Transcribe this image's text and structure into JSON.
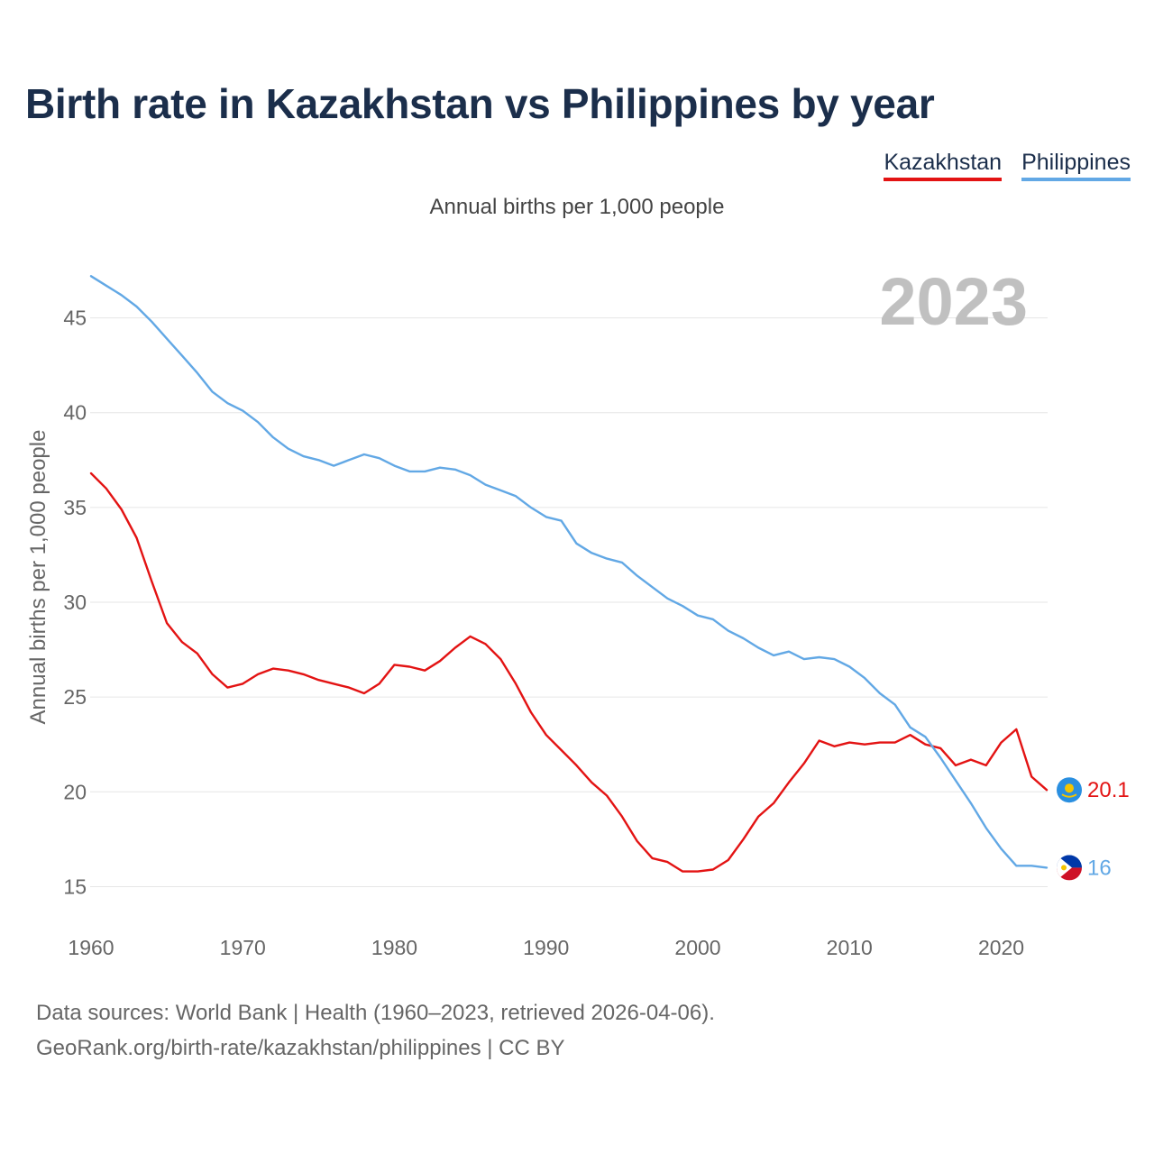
{
  "title": "Birth rate in Kazakhstan vs Philippines by year",
  "legend": [
    {
      "label": "Kazakhstan",
      "color": "#e31313"
    },
    {
      "label": "Philippines",
      "color": "#62a8e5"
    }
  ],
  "subtitle": "Annual births per 1,000 people",
  "year_label": "2023",
  "footer": {
    "line1": "Data sources: World Bank | Health (1960–2023, retrieved 2026-04-06).",
    "line2": "GeoRank.org/birth-rate/kazakhstan/philippines | CC BY"
  },
  "chart_data": {
    "type": "line",
    "title": "Birth rate in Kazakhstan vs Philippines by year",
    "ylabel": "Annual births per 1,000 people",
    "xlabel": "",
    "xlim": [
      1960,
      2023
    ],
    "ylim": [
      13.5,
      47.5
    ],
    "xticks": [
      1960,
      1970,
      1980,
      1990,
      2000,
      2010,
      2020
    ],
    "yticks": [
      15,
      20,
      25,
      30,
      35,
      40,
      45
    ],
    "grid": true,
    "series": [
      {
        "name": "Kazakhstan",
        "color": "#e31313",
        "end_label": "20.1",
        "flag_icon": "kazakhstan-flag-icon",
        "x": [
          1960,
          1961,
          1962,
          1963,
          1964,
          1965,
          1966,
          1967,
          1968,
          1969,
          1970,
          1971,
          1972,
          1973,
          1974,
          1975,
          1976,
          1977,
          1978,
          1979,
          1980,
          1981,
          1982,
          1983,
          1984,
          1985,
          1986,
          1987,
          1988,
          1989,
          1990,
          1991,
          1992,
          1993,
          1994,
          1995,
          1996,
          1997,
          1998,
          1999,
          2000,
          2001,
          2002,
          2003,
          2004,
          2005,
          2006,
          2007,
          2008,
          2009,
          2010,
          2011,
          2012,
          2013,
          2014,
          2015,
          2016,
          2017,
          2018,
          2019,
          2020,
          2021,
          2022,
          2023
        ],
        "values": [
          36.8,
          36.0,
          34.9,
          33.4,
          31.1,
          28.9,
          27.9,
          27.3,
          26.2,
          25.5,
          25.7,
          26.2,
          26.5,
          26.4,
          26.2,
          25.9,
          25.7,
          25.5,
          25.2,
          25.7,
          26.7,
          26.6,
          26.4,
          26.9,
          27.6,
          28.2,
          27.8,
          27.0,
          25.7,
          24.2,
          23.0,
          22.2,
          21.4,
          20.5,
          19.8,
          18.7,
          17.4,
          16.5,
          16.3,
          15.8,
          15.8,
          15.9,
          16.4,
          17.5,
          18.7,
          19.4,
          20.5,
          21.5,
          22.7,
          22.4,
          22.6,
          22.5,
          22.6,
          22.6,
          23.0,
          22.5,
          22.3,
          21.4,
          21.7,
          21.4,
          22.6,
          23.3,
          20.8,
          20.1
        ]
      },
      {
        "name": "Philippines",
        "color": "#62a8e5",
        "end_label": "16",
        "flag_icon": "philippines-flag-icon",
        "x": [
          1960,
          1961,
          1962,
          1963,
          1964,
          1965,
          1966,
          1967,
          1968,
          1969,
          1970,
          1971,
          1972,
          1973,
          1974,
          1975,
          1976,
          1977,
          1978,
          1979,
          1980,
          1981,
          1982,
          1983,
          1984,
          1985,
          1986,
          1987,
          1988,
          1989,
          1990,
          1991,
          1992,
          1993,
          1994,
          1995,
          1996,
          1997,
          1998,
          1999,
          2000,
          2001,
          2002,
          2003,
          2004,
          2005,
          2006,
          2007,
          2008,
          2009,
          2010,
          2011,
          2012,
          2013,
          2014,
          2015,
          2016,
          2017,
          2018,
          2019,
          2020,
          2021,
          2022,
          2023
        ],
        "values": [
          47.2,
          46.7,
          46.2,
          45.6,
          44.8,
          43.9,
          43.0,
          42.1,
          41.1,
          40.5,
          40.1,
          39.5,
          38.7,
          38.1,
          37.7,
          37.5,
          37.2,
          37.5,
          37.8,
          37.6,
          37.2,
          36.9,
          36.9,
          37.1,
          37.0,
          36.7,
          36.2,
          35.9,
          35.6,
          35.0,
          34.5,
          34.3,
          33.1,
          32.6,
          32.3,
          32.1,
          31.4,
          30.8,
          30.2,
          29.8,
          29.3,
          29.1,
          28.5,
          28.1,
          27.6,
          27.2,
          27.4,
          27.0,
          27.1,
          27.0,
          26.6,
          26.0,
          25.2,
          24.6,
          23.4,
          22.9,
          21.8,
          20.6,
          19.4,
          18.1,
          17.0,
          16.1,
          16.1,
          16.0
        ]
      }
    ]
  }
}
